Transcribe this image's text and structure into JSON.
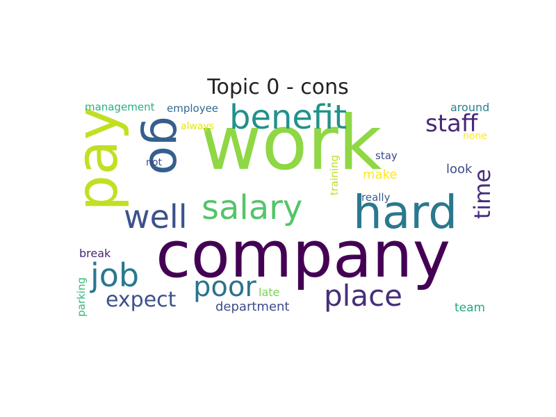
{
  "title": "Topic 0 - cons",
  "words": [
    {
      "text": "work",
      "color": "#8fd744"
    },
    {
      "text": "company",
      "color": "#440154"
    },
    {
      "text": "pay",
      "color": "#c2df23"
    },
    {
      "text": "go",
      "color": "#355f8d"
    },
    {
      "text": "hard",
      "color": "#2a788e"
    },
    {
      "text": "benefit",
      "color": "#21918c"
    },
    {
      "text": "salary",
      "color": "#52c569"
    },
    {
      "text": "well",
      "color": "#3b528b"
    },
    {
      "text": "job",
      "color": "#2a788e"
    },
    {
      "text": "poor",
      "color": "#2c728e"
    },
    {
      "text": "place",
      "color": "#472d7b"
    },
    {
      "text": "expect",
      "color": "#3b528b"
    },
    {
      "text": "staff",
      "color": "#482878"
    },
    {
      "text": "time",
      "color": "#472d7b"
    },
    {
      "text": "management",
      "color": "#29af7f"
    },
    {
      "text": "employee",
      "color": "#31688e"
    },
    {
      "text": "always",
      "color": "#e5e419"
    },
    {
      "text": "not",
      "color": "#414487"
    },
    {
      "text": "training",
      "color": "#bddf26"
    },
    {
      "text": "stay",
      "color": "#3e4a89"
    },
    {
      "text": "make",
      "color": "#fde725"
    },
    {
      "text": "look",
      "color": "#3e4a89"
    },
    {
      "text": "around",
      "color": "#26828e"
    },
    {
      "text": "none",
      "color": "#fde725"
    },
    {
      "text": "really",
      "color": "#365c8d"
    },
    {
      "text": "break",
      "color": "#482475"
    },
    {
      "text": "parking",
      "color": "#35b779"
    },
    {
      "text": "late",
      "color": "#7ad151"
    },
    {
      "text": "department",
      "color": "#3e4a89"
    },
    {
      "text": "team",
      "color": "#22a884"
    }
  ]
}
